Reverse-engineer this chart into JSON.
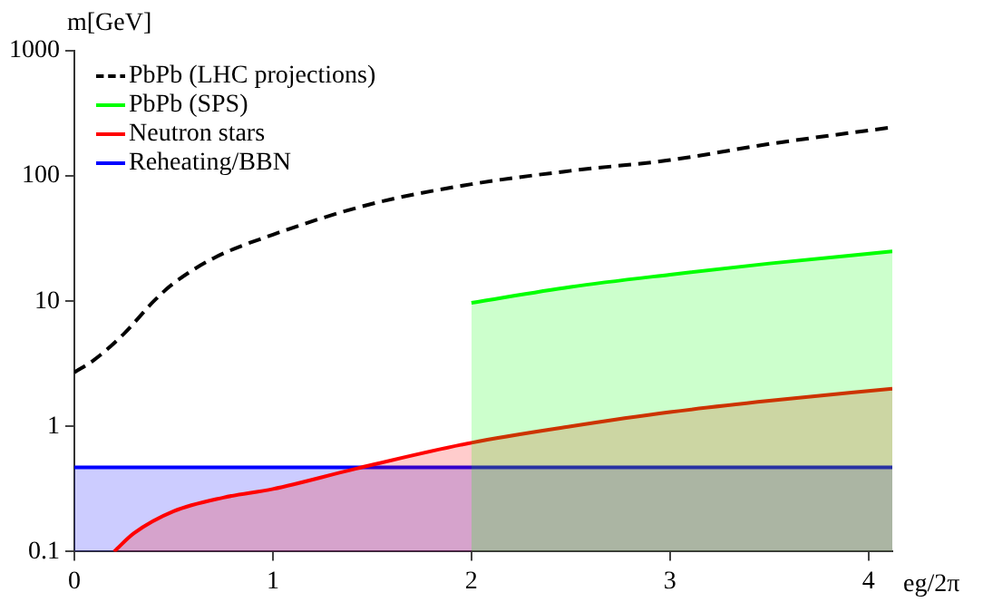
{
  "chart_data": {
    "type": "line",
    "xlabel": "eg/2π",
    "ylabel": "m[GeV]",
    "log": "y",
    "xlim": [
      0,
      4.12
    ],
    "xticks": [
      0,
      1,
      2,
      3,
      4
    ],
    "ylim": [
      0.1,
      1000
    ],
    "yticks": [
      0.1,
      1,
      10,
      100,
      1000
    ],
    "grid": false,
    "legend": "top left",
    "series": [
      {
        "name": "PbPb (LHC projections)",
        "type": "line",
        "line_style": "dashed",
        "color": "#000000",
        "x": [
          0,
          0.1,
          0.25,
          0.4,
          0.49,
          0.7,
          1,
          1.5,
          2,
          2.5,
          3,
          3.5,
          4.12
        ],
        "values": [
          2.7,
          3.4,
          5.5,
          10,
          13.5,
          22,
          34,
          60,
          86,
          110,
          134,
          180,
          245
        ]
      },
      {
        "name": "PbPb (SPS)",
        "type": "area",
        "color": "#00ff00",
        "x": [
          2,
          2.5,
          3,
          3.5,
          4.12
        ],
        "values": [
          9.7,
          13,
          16.3,
          20,
          25
        ]
      },
      {
        "name": "Neutron stars",
        "type": "area",
        "color": "#ff0000",
        "x": [
          0.2,
          0.3,
          0.5,
          0.75,
          1,
          1.42,
          2,
          2.5,
          3,
          3.5,
          4.12
        ],
        "values": [
          0.1,
          0.14,
          0.21,
          0.27,
          0.316,
          0.46,
          0.74,
          1,
          1.3,
          1.6,
          2
        ]
      },
      {
        "name": "Reheating/BBN",
        "type": "area",
        "color": "#0000ff",
        "x": [
          0,
          4.12
        ],
        "values": [
          0.47,
          0.47
        ]
      }
    ]
  }
}
